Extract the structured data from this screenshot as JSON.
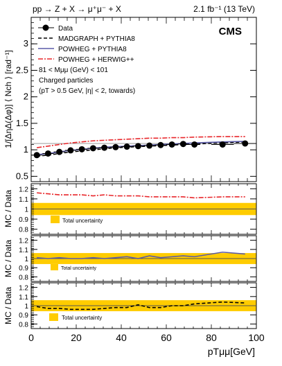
{
  "header": {
    "process": "pp → Z + X → μ⁺μ⁻ + X",
    "luminosity": "2.1 fb⁻¹ (13 TeV)",
    "experiment": "CMS"
  },
  "legend": {
    "entries": [
      {
        "label": "Data",
        "style": "marker",
        "color": "#000000"
      },
      {
        "label": "MADGRAPH + PYTHIA8",
        "style": "dashed",
        "color": "#000000"
      },
      {
        "label": "POWHEG + PYTHIA8",
        "style": "solid",
        "color": "#5b5ba8"
      },
      {
        "label": "POWHEG + HERWIG++",
        "style": "dashdot",
        "color": "#e8262a"
      }
    ],
    "notes": [
      "81 < Mμμ (GeV) < 101",
      "Charged particles",
      "(pT > 0.5 GeV, |η| < 2, towards)"
    ]
  },
  "colors": {
    "data": "#000000",
    "madgraph": "#000000",
    "powheg_pythia": "#5b5ba8",
    "powheg_herwig": "#e8262a",
    "uncertainty_band": "#ffcc00"
  },
  "chart_data": [
    {
      "type": "scatter",
      "panel": "main",
      "ylabel": "1/[ΔηΔ(Δφ)] ⟨ Nch ⟩ [rad⁻¹]",
      "xlim": [
        0,
        100
      ],
      "ylim": [
        0.4,
        3.5
      ],
      "y_ticks": [
        0.5,
        1,
        1.5,
        2,
        2.5,
        3
      ],
      "y_tick_labels": [
        "0.5",
        "1",
        "1.5",
        "2",
        "2.5",
        "3"
      ],
      "x": [
        2.5,
        7.5,
        12.5,
        17.5,
        22.5,
        27.5,
        32.5,
        37.5,
        42.5,
        47.5,
        52.5,
        57.5,
        62.5,
        67.5,
        72.5,
        85,
        95
      ],
      "series": [
        {
          "name": "Data",
          "values": [
            0.9,
            0.93,
            0.96,
            0.99,
            1.01,
            1.03,
            1.04,
            1.05,
            1.06,
            1.07,
            1.08,
            1.09,
            1.1,
            1.11,
            1.1,
            1.1,
            1.12
          ]
        },
        {
          "name": "MADGRAPH + PYTHIA8",
          "values": [
            0.88,
            0.9,
            0.93,
            0.96,
            0.98,
            1.0,
            1.02,
            1.04,
            1.05,
            1.06,
            1.07,
            1.08,
            1.09,
            1.1,
            1.11,
            1.13,
            1.15
          ]
        },
        {
          "name": "POWHEG + PYTHIA8",
          "values": [
            0.91,
            0.93,
            0.96,
            0.99,
            1.01,
            1.03,
            1.05,
            1.06,
            1.07,
            1.08,
            1.09,
            1.1,
            1.11,
            1.12,
            1.13,
            1.15,
            1.16
          ]
        },
        {
          "name": "POWHEG + HERWIG++",
          "values": [
            1.04,
            1.07,
            1.1,
            1.13,
            1.15,
            1.17,
            1.18,
            1.19,
            1.2,
            1.21,
            1.22,
            1.22,
            1.23,
            1.23,
            1.24,
            1.25,
            1.25
          ]
        }
      ]
    },
    {
      "type": "line",
      "panel": "ratio-herwig",
      "ylabel": "MC / Data",
      "ylim": [
        0.75,
        1.25
      ],
      "y_ticks": [
        0.8,
        0.9,
        1,
        1.1,
        1.2
      ],
      "y_tick_labels": [
        "0.8",
        "0.9",
        "1",
        "1.1",
        "1.2"
      ],
      "band_label": "Total uncertainty",
      "band": [
        0.94,
        1.06
      ],
      "series": [
        {
          "name": "POWHEG + HERWIG++",
          "values": [
            1.16,
            1.15,
            1.14,
            1.14,
            1.14,
            1.13,
            1.14,
            1.13,
            1.13,
            1.13,
            1.12,
            1.12,
            1.12,
            1.12,
            1.11,
            1.12,
            1.12
          ]
        }
      ]
    },
    {
      "type": "line",
      "panel": "ratio-powheg-pythia",
      "ylabel": "MC / Data",
      "ylim": [
        0.75,
        1.25
      ],
      "y_ticks": [
        0.8,
        0.9,
        1,
        1.1,
        1.2
      ],
      "y_tick_labels": [
        "0.8",
        "0.9",
        "1",
        "1.1",
        "1.2"
      ],
      "band_label": "Total uncertainty",
      "band": [
        0.94,
        1.06
      ],
      "series": [
        {
          "name": "POWHEG + PYTHIA8",
          "values": [
            1.01,
            1.0,
            1.01,
            1.0,
            1.0,
            1.01,
            1.0,
            1.01,
            1.02,
            1.0,
            1.03,
            1.01,
            1.02,
            1.03,
            1.02,
            1.07,
            1.05
          ]
        }
      ]
    },
    {
      "type": "line",
      "panel": "ratio-madgraph",
      "ylabel": "MC / Data",
      "xlabel": "pTμμ[GeV]",
      "ylim": [
        0.75,
        1.25
      ],
      "y_ticks": [
        0.8,
        0.9,
        1,
        1.1,
        1.2
      ],
      "y_tick_labels": [
        "0.8",
        "0.9",
        "1",
        "1.1",
        "1.2"
      ],
      "x_ticks": [
        0,
        20,
        40,
        60,
        80,
        100
      ],
      "x_tick_labels": [
        "0",
        "20",
        "40",
        "60",
        "80",
        "100"
      ],
      "band_label": "Total uncertainty",
      "band": [
        0.94,
        1.06
      ],
      "series": [
        {
          "name": "MADGRAPH + PYTHIA8",
          "values": [
            0.99,
            0.97,
            0.97,
            0.96,
            0.96,
            0.96,
            0.97,
            0.98,
            0.98,
            1.01,
            0.98,
            0.98,
            1.0,
            1.0,
            1.02,
            1.04,
            1.03
          ]
        }
      ]
    }
  ]
}
